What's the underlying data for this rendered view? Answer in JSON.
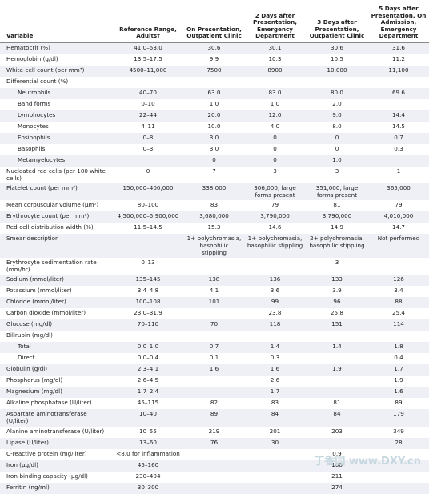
{
  "table": {
    "columns": [
      "Variable",
      "Reference Range, Adults†",
      "On Presentation, Outpatient Clinic",
      "2 Days after Presentation, Emergency Department",
      "3 Days after Presentation, Outpatient Clinic",
      "5 Days after Presentation, On Admission, Emergency Department"
    ],
    "rows": [
      [
        "Hematocrit (%)",
        "41.0–53.0",
        "30.6",
        "30.1",
        "30.6",
        "31.6"
      ],
      [
        "Hemoglobin (g/dl)",
        "13.5–17.5",
        "9.9",
        "10.3",
        "10.5",
        "11.2"
      ],
      [
        "White-cell count (per mm³)",
        "4500–11,000",
        "7500",
        "8900",
        "10,000",
        "11,100"
      ],
      {
        "label": "Differential count (%)",
        "rows": [
          [
            "Neutrophils",
            "40–70",
            "63.0",
            "83.0",
            "80.0",
            "69.6"
          ],
          [
            "Band forms",
            "0–10",
            "1.0",
            "1.0",
            "2.0",
            null
          ],
          [
            "Lymphocytes",
            "22–44",
            "20.0",
            "12.0",
            "9.0",
            "14.4"
          ],
          [
            "Monocytes",
            "4–11",
            "10.0",
            "4.0",
            "8.0",
            "14.5"
          ],
          [
            "Eosinophils",
            "0–8",
            "3.0",
            "0",
            "0",
            "0.7"
          ],
          [
            "Basophils",
            "0–3",
            "3.0",
            "0",
            "0",
            "0.3"
          ],
          [
            "Metamyelocytes",
            null,
            "0",
            "0",
            "1.0",
            null
          ]
        ]
      },
      [
        "Nucleated red cells (per 100 white cells)",
        "0",
        "7",
        "3",
        "3",
        "1"
      ],
      [
        "Platelet count (per mm³)",
        "150,000–400,000",
        "338,000",
        "306,000, large forms present",
        "351,000, large forms present",
        "365,000"
      ],
      [
        "Mean corpuscular volume (μm³)",
        "80–100",
        "83",
        "79",
        "81",
        "79"
      ],
      [
        "Erythrocyte count (per mm³)",
        "4,500,000–5,900,000",
        "3,680,000",
        "3,790,000",
        "3,790,000",
        "4,010,000"
      ],
      [
        "Red-cell distribution width (%)",
        "11.5–14.5",
        "15.3",
        "14.6",
        "14.9",
        "14.7"
      ],
      [
        "Smear description",
        null,
        "1+ polychromasia, basophilic stippling",
        "1+ polychromasia, basophilic stippling",
        "2+ polychromasia, basophilic stippling",
        "Not performed"
      ],
      [
        "Erythrocyte sedimentation rate (mm/hr)",
        "0–13",
        null,
        null,
        "3",
        null
      ],
      [
        "Sodium (mmol/liter)",
        "135–145",
        "138",
        "136",
        "133",
        "126"
      ],
      [
        "Potassium (mmol/liter)",
        "3.4–4.8",
        "4.1",
        "3.6",
        "3.9",
        "3.4"
      ],
      [
        "Chloride (mmol/liter)",
        "100–108",
        "101",
        "99",
        "96",
        "88"
      ],
      [
        "Carbon dioxide (mmol/liter)",
        "23.0–31.9",
        null,
        "23.8",
        "25.8",
        "25.4"
      ],
      [
        "Glucose (mg/dl)",
        "70–110",
        "70",
        "118",
        "151",
        "114"
      ],
      {
        "label": "Bilirubin (mg/dl)",
        "rows": [
          [
            "Total",
            "0.0–1.0",
            "0.7",
            "1.4",
            "1.4",
            "1.8"
          ],
          [
            "Direct",
            "0.0–0.4",
            "0.1",
            "0.3",
            null,
            "0.4"
          ]
        ]
      },
      [
        "Globulin (g/dl)",
        "2.3–4.1",
        "1.6",
        "1.6",
        "1.9",
        "1.7"
      ],
      [
        "Phosphorus (mg/dl)",
        "2.6–4.5",
        null,
        "2.6",
        null,
        "1.9"
      ],
      [
        "Magnesium (mg/dl)",
        "1.7–2.4",
        null,
        "1.7",
        null,
        "1.6"
      ],
      [
        "Alkaline phosphatase (U/liter)",
        "45–115",
        "82",
        "83",
        "81",
        "89"
      ],
      [
        "Aspartate aminotransferase (U/liter)",
        "10–40",
        "89",
        "84",
        "84",
        "179"
      ],
      [
        "Alanine aminotransferase (U/liter)",
        "10–55",
        "219",
        "201",
        "203",
        "349"
      ],
      [
        "Lipase (U/liter)",
        "13–60",
        "76",
        "30",
        null,
        "28"
      ],
      [
        "C-reactive protein (mg/liter)",
        "<8.0 for inflammation",
        null,
        null,
        "0.9",
        null
      ],
      [
        "Iron (μg/dl)",
        "45–160",
        null,
        null,
        "166",
        null
      ],
      [
        "Iron-binding capacity (μg/dl)",
        "230–404",
        null,
        null,
        "211",
        null
      ],
      [
        "Ferritin (ng/ml)",
        "30–300",
        null,
        null,
        "274",
        null
      ]
    ],
    "watermark": "丁香园 www.DXY.cn"
  }
}
